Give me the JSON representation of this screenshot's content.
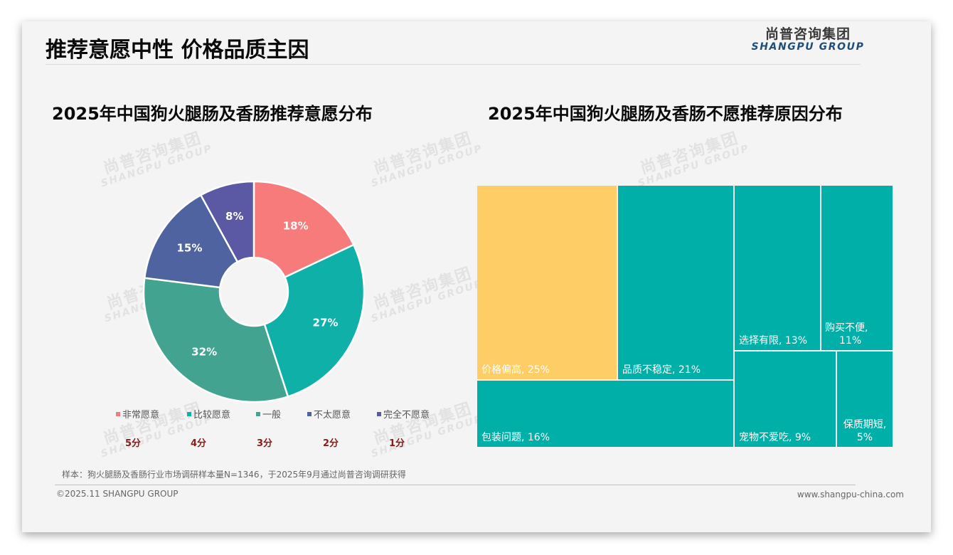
{
  "header": {
    "title": "推荐意愿中性 价格品质主因",
    "logo_cn": "尚普咨询集团",
    "logo_en": "SHANGPU GROUP"
  },
  "watermark": {
    "cn": "尚普咨询集团",
    "en": "SHANGPU GROUP"
  },
  "left_chart": {
    "title": "2025年中国狗火腿肠及香肠推荐意愿分布",
    "slices": [
      {
        "label": "非常愿意",
        "value": 18,
        "display": "18%",
        "color": "#f77b7b",
        "score": "5分"
      },
      {
        "label": "比较愿意",
        "value": 27,
        "display": "27%",
        "color": "#0fb0a8",
        "score": "4分"
      },
      {
        "label": "一般",
        "value": 32,
        "display": "32%",
        "color": "#43a391",
        "score": "3分"
      },
      {
        "label": "不太愿意",
        "value": 15,
        "display": "15%",
        "color": "#4e63a0",
        "score": "2分"
      },
      {
        "label": "完全不愿意",
        "value": 8,
        "display": "8%",
        "color": "#5b58a4",
        "score": "1分"
      }
    ]
  },
  "right_chart": {
    "title": "2025年中国狗火腿肠及香肠不愿推荐原因分布",
    "tiles": [
      {
        "label": "价格偏高, 25%",
        "name": "价格偏高",
        "value": 25,
        "color": "#ffcd66"
      },
      {
        "label": "品质不稳定, 21%",
        "name": "品质不稳定",
        "value": 21,
        "color": "#00b0a8"
      },
      {
        "label": "包装问题, 16%",
        "name": "包装问题",
        "value": 16,
        "color": "#00b0a8"
      },
      {
        "label": "选择有限, 13%",
        "name": "选择有限",
        "value": 13,
        "color": "#00b0a8"
      },
      {
        "label_line1": "购买不便,",
        "label_line2": "11%",
        "name": "购买不便",
        "value": 11,
        "color": "#00b0a8"
      },
      {
        "label": "宠物不爱吃, 9%",
        "name": "宠物不爱吃",
        "value": 9,
        "color": "#00b0a8"
      },
      {
        "label_line1": "保质期短,",
        "label_line2": "5%",
        "name": "保质期短",
        "value": 5,
        "color": "#00b0a8"
      }
    ]
  },
  "footer": {
    "note": "样本：狗火腿肠及香肠行业市场调研样本量N=1346，于2025年9月通过尚普咨询调研获得",
    "copyright": "©2025.11 SHANGPU GROUP",
    "website": "www.shangpu-china.com"
  },
  "chart_data": [
    {
      "type": "pie",
      "title": "2025年中国狗火腿肠及香肠推荐意愿分布",
      "categories": [
        "非常愿意",
        "比较愿意",
        "一般",
        "不太愿意",
        "完全不愿意"
      ],
      "values": [
        18,
        27,
        32,
        15,
        8
      ],
      "unit": "%",
      "donut": true,
      "annotations": [
        "5分",
        "4分",
        "3分",
        "2分",
        "1分"
      ],
      "legend_position": "bottom",
      "colors": [
        "#f77b7b",
        "#0fb0a8",
        "#43a391",
        "#4e63a0",
        "#5b58a4"
      ]
    },
    {
      "type": "treemap",
      "title": "2025年中国狗火腿肠及香肠不愿推荐原因分布",
      "categories": [
        "价格偏高",
        "品质不稳定",
        "包装问题",
        "选择有限",
        "购买不便",
        "宠物不爱吃",
        "保质期短"
      ],
      "values": [
        25,
        21,
        16,
        13,
        11,
        9,
        5
      ],
      "unit": "%"
    }
  ]
}
